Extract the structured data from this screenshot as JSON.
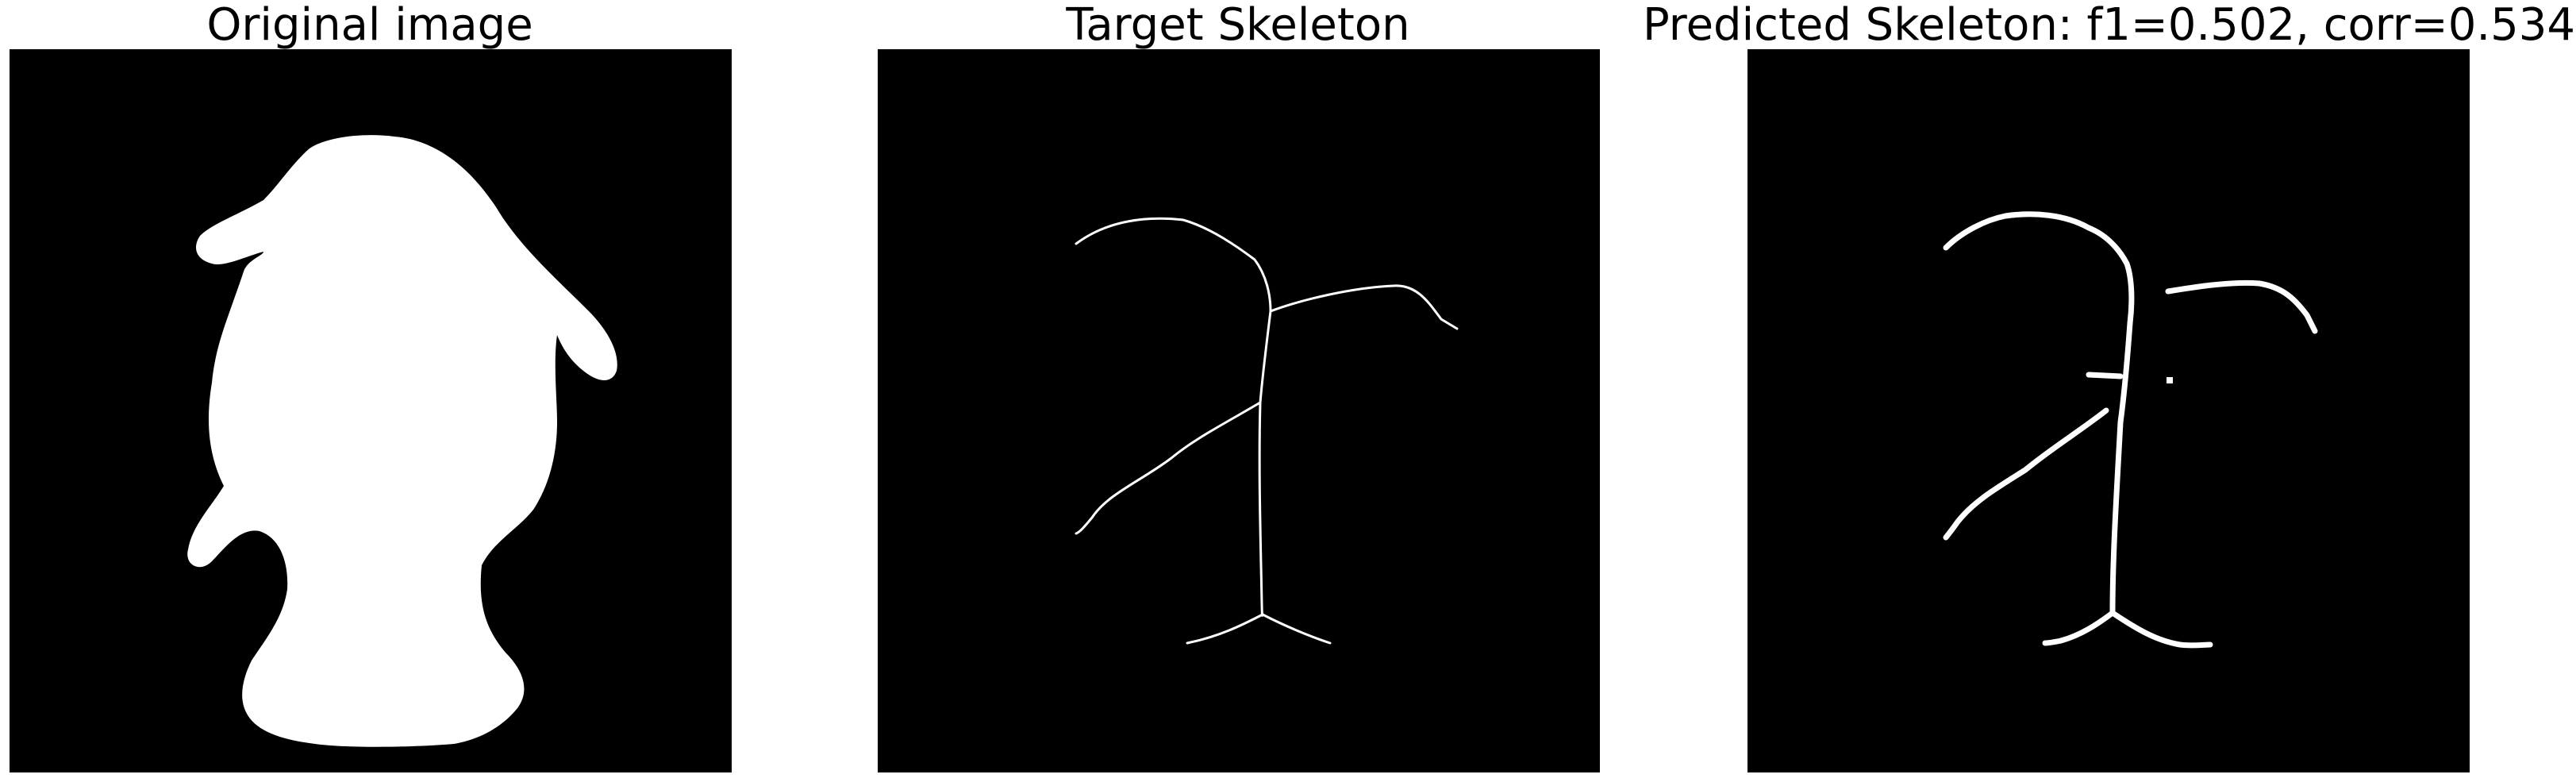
{
  "figure": {
    "panels": [
      {
        "title": "Original image"
      },
      {
        "title": "Target Skeleton"
      },
      {
        "title": "Predicted Skeleton: f1=0.502, corr=0.534"
      }
    ]
  },
  "colors": {
    "background": "#ffffff",
    "image_background": "#000000",
    "foreground": "#ffffff",
    "title_text": "#000000"
  }
}
